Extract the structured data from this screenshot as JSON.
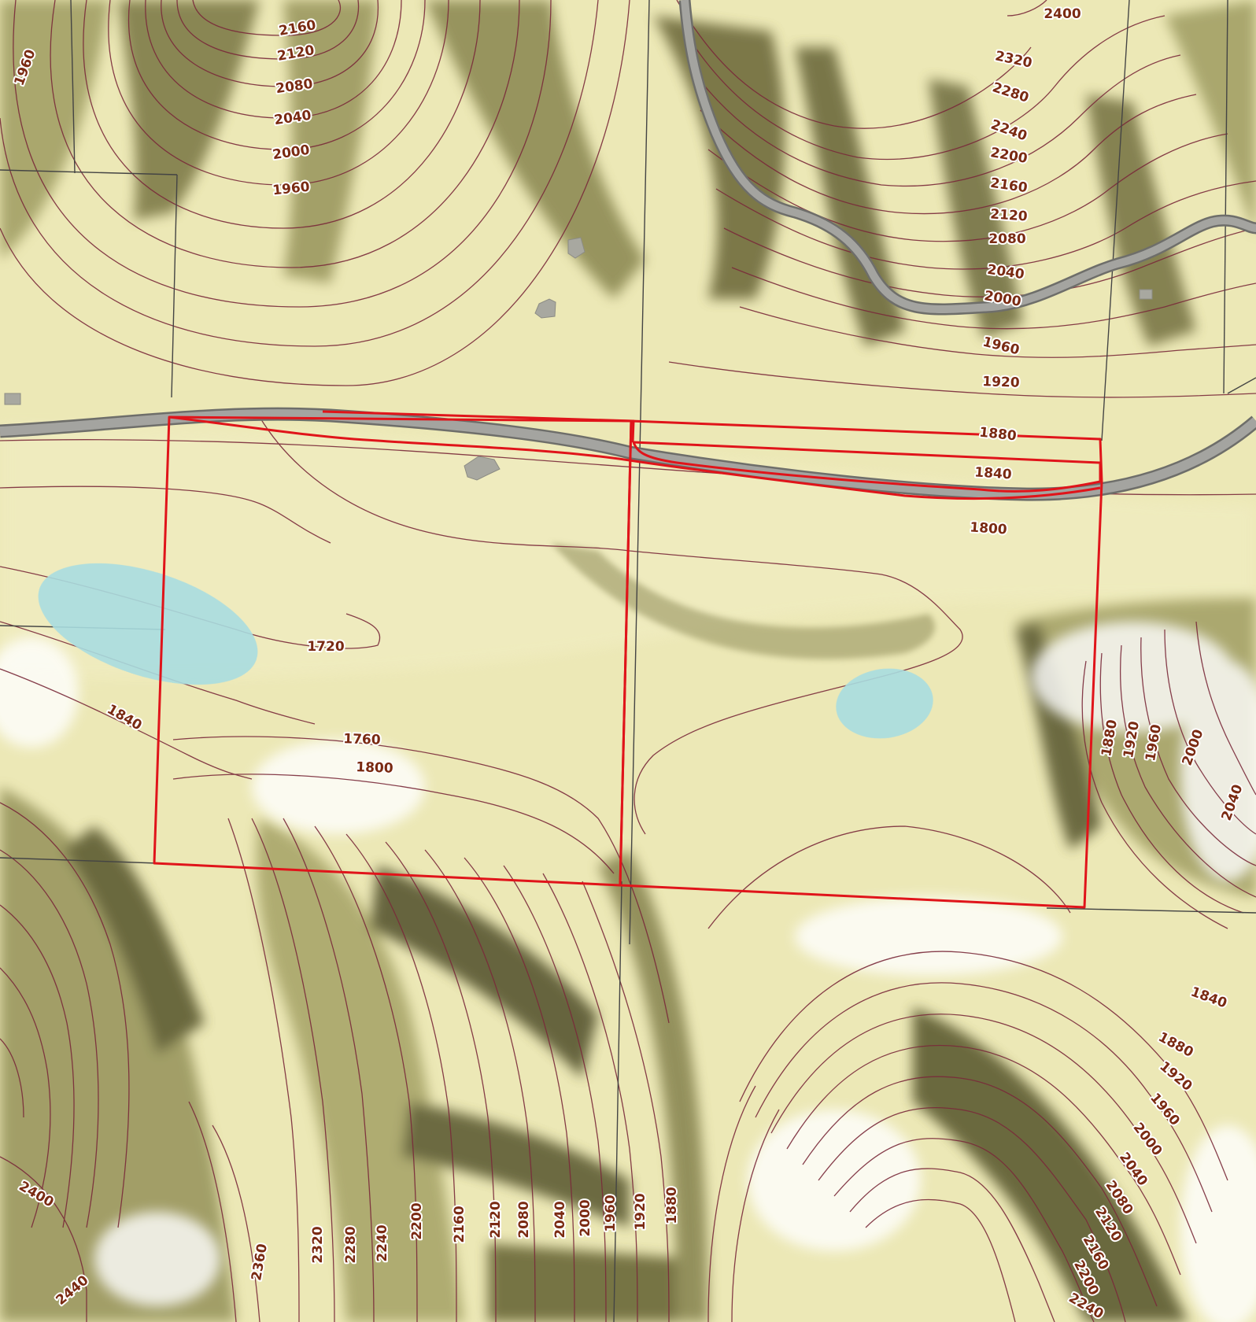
{
  "colors": {
    "terrain_base": "#ece8b6",
    "terrain_light": "#f6f3d4",
    "terrain_dark": "#6c6a3e",
    "terrain_mid": "#a9a66a",
    "contour": "#7a2a3a",
    "label_text": "#7a2a12",
    "label_halo": "#ffffff",
    "road": "#9a9a96",
    "road_edge": "#6e6e6a",
    "parcel_line": "#444444",
    "boundary": "#e0141a",
    "water": "#a9dde0",
    "building": "#a8a8a0"
  },
  "layers": [
    "hillshade-terrain",
    "contour-lines",
    "road",
    "parcel-lines",
    "water-bodies",
    "buildings",
    "highlighted-parcels"
  ],
  "contour_labels": [
    "2160",
    "2120",
    "2080",
    "2040",
    "2000",
    "1960",
    "1960",
    "2400",
    "2320",
    "2280",
    "2240",
    "2200",
    "2160",
    "2120",
    "2080",
    "2040",
    "2000",
    "1960",
    "1920",
    "1880",
    "1840",
    "1800",
    "1720",
    "1840",
    "1760",
    "1800",
    "1880",
    "1920",
    "1960",
    "2000",
    "2040",
    "1840",
    "1880",
    "1920",
    "1960",
    "2000",
    "2040",
    "2080",
    "2120",
    "2160",
    "2200",
    "2240",
    "2400",
    "2440",
    "2360",
    "2320",
    "2280",
    "2240",
    "2200",
    "2160",
    "2120",
    "2080",
    "2040",
    "2000",
    "1960",
    "1920",
    "1880"
  ]
}
